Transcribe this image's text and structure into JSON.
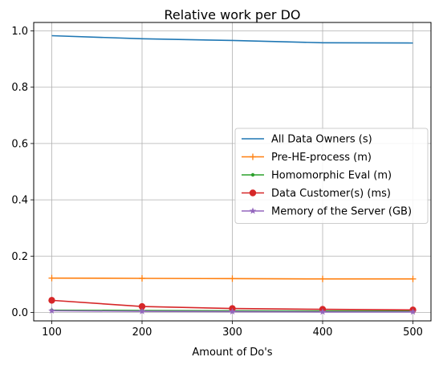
{
  "chart_data": {
    "type": "line",
    "title": "Relative work per DO",
    "xlabel": "Amount of Do's",
    "ylabel": "",
    "x": [
      100,
      200,
      300,
      400,
      500
    ],
    "xticks": [
      "100",
      "200",
      "300",
      "400",
      "500"
    ],
    "yticks": [
      "0.0",
      "0.2",
      "0.4",
      "0.6",
      "0.8",
      "1.0"
    ],
    "xlim": [
      80,
      520
    ],
    "ylim": [
      -0.03,
      1.03
    ],
    "grid": true,
    "legend_position": "center-right",
    "series": [
      {
        "name": "All Data Owners (s)",
        "color": "#1f77b4",
        "marker": "none",
        "values": [
          0.983,
          0.972,
          0.966,
          0.958,
          0.957
        ]
      },
      {
        "name": "Pre-HE-process (m)",
        "color": "#ff7f0e",
        "marker": "plus",
        "values": [
          0.122,
          0.121,
          0.12,
          0.119,
          0.119
        ]
      },
      {
        "name": "Homomorphic Eval (m)",
        "color": "#2ca02c",
        "marker": "point",
        "values": [
          0.008,
          0.007,
          0.006,
          0.005,
          0.005
        ]
      },
      {
        "name": "Data Customer(s) (ms)",
        "color": "#d62728",
        "marker": "circle",
        "values": [
          0.043,
          0.021,
          0.014,
          0.011,
          0.009
        ]
      },
      {
        "name": "Memory of the Server (GB)",
        "color": "#9467bd",
        "marker": "star",
        "values": [
          0.006,
          0.004,
          0.003,
          0.002,
          0.002
        ]
      }
    ]
  }
}
